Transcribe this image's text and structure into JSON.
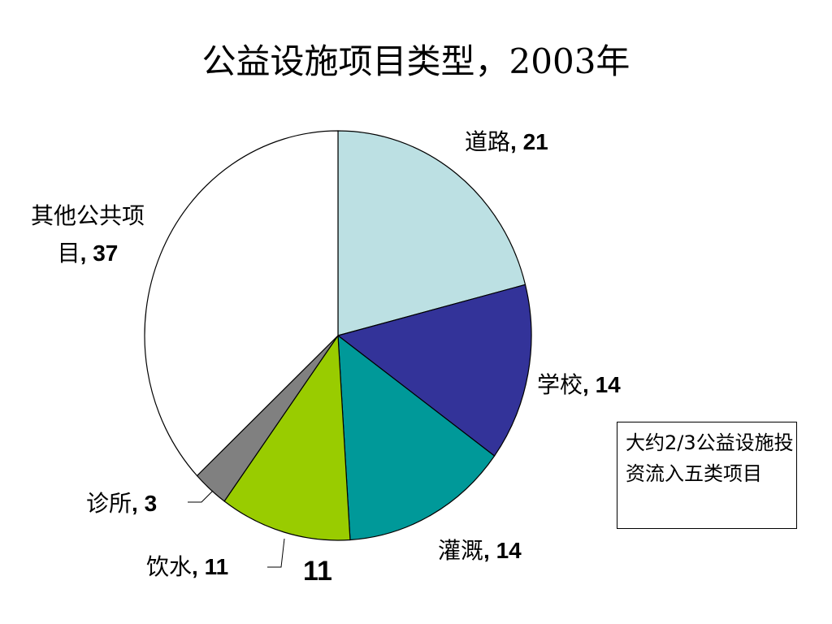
{
  "chart_data": {
    "type": "pie",
    "title": "公益设施项目类型，2003年",
    "slices": [
      {
        "label": "道路",
        "value": 21,
        "color": "#bce0e3"
      },
      {
        "label": "学校",
        "value": 14,
        "color": "#333399"
      },
      {
        "label": "灌溉",
        "value": 14,
        "color": "#009999"
      },
      {
        "label": "饮水",
        "value": 11,
        "color": "#99cc00"
      },
      {
        "label": "诊所",
        "value": 3,
        "color": "#808080"
      },
      {
        "label": "其他公共项目",
        "value": 37,
        "color": "#ffffff"
      }
    ],
    "annotation_value": "11",
    "note": "大约2/3公益设施投资流入五类项目"
  }
}
